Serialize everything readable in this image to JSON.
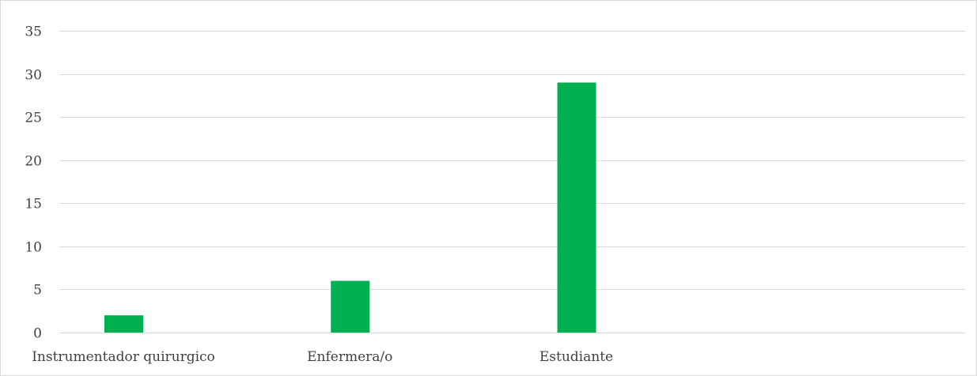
{
  "chart_data": {
    "type": "bar",
    "categories": [
      "Instrumentador quirurgico",
      "Enfermera/o",
      "Estudiante",
      ""
    ],
    "values": [
      2,
      6,
      29,
      null
    ],
    "ylim": [
      0,
      35
    ],
    "yticks": [
      "0",
      "5",
      "10",
      "15",
      "20",
      "25",
      "30",
      "35"
    ],
    "grid": true,
    "legend": "none",
    "colors": {
      "bar": "#00b050",
      "grid": "#d9d9d9",
      "text": "#404040"
    }
  }
}
